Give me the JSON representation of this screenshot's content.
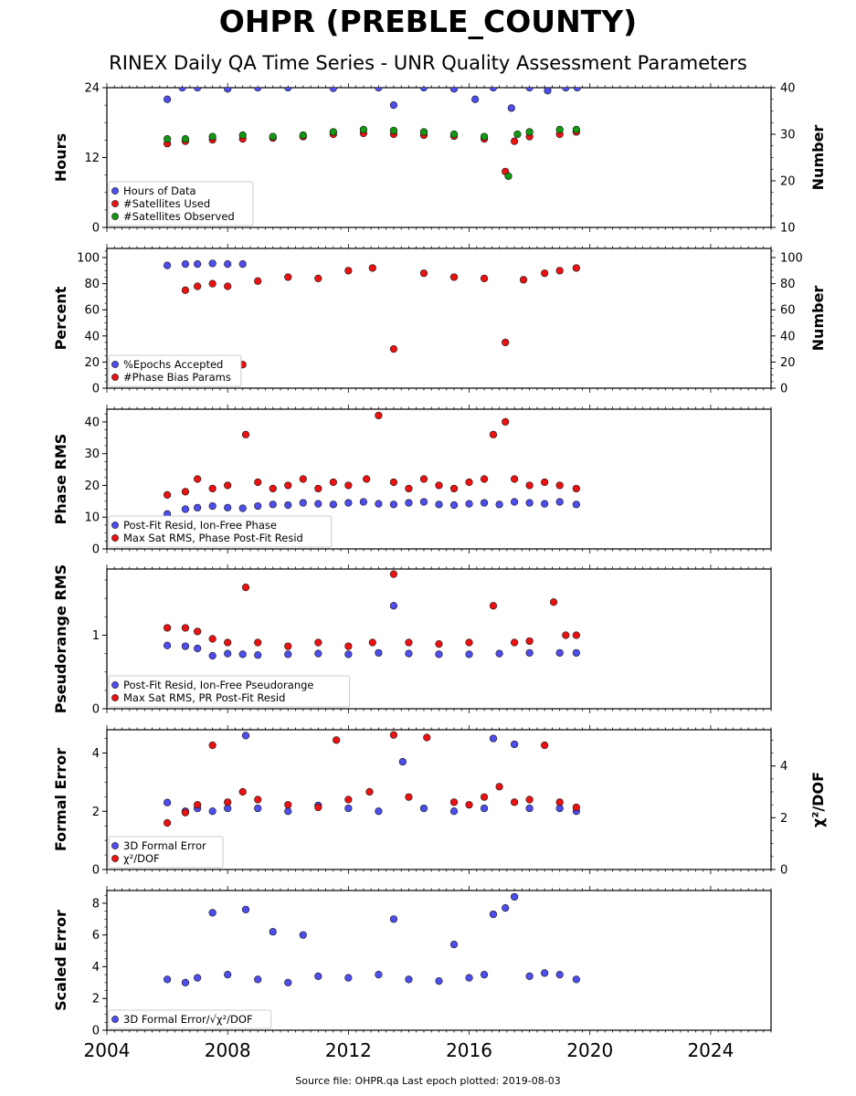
{
  "page": {
    "title": "OHPR (PREBLE_COUNTY)",
    "subtitle": "RINEX Daily QA Time Series - UNR Quality Assessment Parameters",
    "footer": "Source file: OHPR.qa Last epoch plotted: 2019-08-03"
  },
  "colors": {
    "blue": "#4e4ef0",
    "red": "#ee1111",
    "green": "#119911",
    "edge": "#111111"
  },
  "x_axis": {
    "range": [
      2004,
      2026
    ],
    "ticks": [
      2004,
      2008,
      2012,
      2016,
      2020,
      2024
    ]
  },
  "chart_data": [
    {
      "type": "scatter",
      "ylabel": "Hours",
      "ylim": [
        0,
        24
      ],
      "yticks": [
        0,
        12,
        24
      ],
      "ylabel_right": "Number",
      "ylim_right": [
        10,
        40
      ],
      "yticks_right": [
        10,
        20,
        30,
        40
      ],
      "legend_placement": "lower-left",
      "series": [
        {
          "name": "Hours of Data",
          "color": "blue",
          "axis": "left",
          "x": [
            2006.0,
            2006.5,
            2007.0,
            2008.0,
            2009.0,
            2010.0,
            2011.5,
            2013.0,
            2013.5,
            2014.5,
            2015.5,
            2016.2,
            2016.8,
            2017.4,
            2018.0,
            2018.6,
            2019.2,
            2019.58
          ],
          "y": [
            22.0,
            24.0,
            24.0,
            23.8,
            24.0,
            24.0,
            23.9,
            24.0,
            21.0,
            24.0,
            23.8,
            22.0,
            24.0,
            20.5,
            24.0,
            23.5,
            24.0,
            24.0
          ]
        },
        {
          "name": "#Satellites Used",
          "color": "red",
          "axis": "right",
          "x": [
            2006.0,
            2006.6,
            2007.5,
            2008.5,
            2009.5,
            2010.5,
            2011.5,
            2012.5,
            2013.5,
            2014.5,
            2015.5,
            2016.5,
            2017.2,
            2017.5,
            2018.0,
            2019.0,
            2019.55
          ],
          "y": [
            28.0,
            28.5,
            28.8,
            29.0,
            29.2,
            29.5,
            30.0,
            30.2,
            30.0,
            29.8,
            29.6,
            29.0,
            22.0,
            28.5,
            29.5,
            30.0,
            30.5
          ]
        },
        {
          "name": "#Satellites Observed",
          "color": "green",
          "axis": "right",
          "x": [
            2006.0,
            2006.6,
            2007.5,
            2008.5,
            2009.5,
            2010.5,
            2011.5,
            2012.5,
            2013.5,
            2014.5,
            2015.5,
            2016.5,
            2017.3,
            2017.6,
            2018.0,
            2019.0,
            2019.55
          ],
          "y": [
            29.0,
            29.0,
            29.5,
            29.8,
            29.5,
            29.8,
            30.5,
            31.0,
            30.8,
            30.5,
            30.0,
            29.5,
            21.0,
            30.0,
            30.5,
            31.0,
            31.0
          ]
        }
      ]
    },
    {
      "type": "scatter",
      "ylabel": "Percent",
      "ylim": [
        0,
        107
      ],
      "yticks": [
        0,
        20,
        40,
        60,
        80,
        100
      ],
      "ylabel_right": "Number",
      "ylim_right": [
        0,
        107
      ],
      "yticks_right": [
        0,
        20,
        40,
        60,
        80,
        100
      ],
      "legend_placement": "lower-left",
      "series": [
        {
          "name": "%Epochs Accepted",
          "color": "blue",
          "axis": "left",
          "x": [
            2006.0,
            2006.6,
            2007.0,
            2007.5,
            2008.0,
            2008.5
          ],
          "y": [
            94.0,
            95.0,
            95.0,
            95.5,
            95.0,
            95.0
          ]
        },
        {
          "name": "#Phase Bias Params",
          "color": "red",
          "axis": "right",
          "x": [
            2006.6,
            2007.0,
            2007.5,
            2008.0,
            2008.5,
            2009.0,
            2010.0,
            2011.0,
            2012.0,
            2012.8,
            2013.5,
            2014.5,
            2015.5,
            2016.5,
            2017.2,
            2017.8,
            2018.5,
            2019.0,
            2019.55
          ],
          "y": [
            75.0,
            78.0,
            80.0,
            78.0,
            18.0,
            82.0,
            85.0,
            84.0,
            90.0,
            92.0,
            30.0,
            88.0,
            85.0,
            84.0,
            35.0,
            83.0,
            88.0,
            90.0,
            92.0
          ]
        }
      ]
    },
    {
      "type": "scatter",
      "ylabel": "Phase RMS",
      "ylim": [
        0,
        44
      ],
      "yticks": [
        0,
        10,
        20,
        30,
        40
      ],
      "legend_placement": "lower-left",
      "series": [
        {
          "name": "Post-Fit Resid, Ion-Free Phase",
          "color": "blue",
          "x": [
            2006.0,
            2006.6,
            2007.0,
            2007.5,
            2008.0,
            2008.5,
            2009.0,
            2009.5,
            2010.0,
            2010.5,
            2011.0,
            2011.5,
            2012.0,
            2012.5,
            2013.0,
            2013.5,
            2014.0,
            2014.5,
            2015.0,
            2015.5,
            2016.0,
            2016.5,
            2017.0,
            2017.5,
            2018.0,
            2018.5,
            2019.0,
            2019.55
          ],
          "y": [
            11.0,
            12.5,
            13.0,
            13.5,
            13.0,
            12.8,
            13.5,
            14.0,
            13.8,
            14.5,
            14.2,
            14.0,
            14.5,
            14.8,
            14.2,
            14.0,
            14.5,
            14.8,
            14.0,
            13.8,
            14.2,
            14.5,
            14.0,
            14.8,
            14.5,
            14.2,
            14.8,
            14.0
          ]
        },
        {
          "name": "Max Sat RMS, Phase Post-Fit Resid",
          "color": "red",
          "x": [
            2006.0,
            2006.6,
            2007.0,
            2007.5,
            2008.0,
            2008.6,
            2009.0,
            2009.5,
            2010.0,
            2010.5,
            2011.0,
            2011.5,
            2012.0,
            2012.6,
            2013.0,
            2013.5,
            2014.0,
            2014.5,
            2015.0,
            2015.5,
            2016.0,
            2016.5,
            2016.8,
            2017.2,
            2017.5,
            2018.0,
            2018.5,
            2019.0,
            2019.55
          ],
          "y": [
            17.0,
            18.0,
            22.0,
            19.0,
            20.0,
            36.0,
            21.0,
            19.0,
            20.0,
            22.0,
            19.0,
            21.0,
            20.0,
            22.0,
            42.0,
            21.0,
            19.0,
            22.0,
            20.0,
            19.0,
            21.0,
            22.0,
            36.0,
            40.0,
            22.0,
            20.0,
            21.0,
            20.0,
            19.0
          ]
        }
      ]
    },
    {
      "type": "scatter",
      "ylabel": "Pseudorange RMS",
      "ylim": [
        0,
        1.9
      ],
      "yticks": [
        0,
        1
      ],
      "legend_placement": "lower-left",
      "series": [
        {
          "name": "Post-Fit Resid, Ion-Free Pseudorange",
          "color": "blue",
          "x": [
            2006.0,
            2006.6,
            2007.0,
            2007.5,
            2008.0,
            2008.5,
            2009.0,
            2010.0,
            2011.0,
            2012.0,
            2013.0,
            2013.5,
            2014.0,
            2015.0,
            2016.0,
            2017.0,
            2018.0,
            2019.0,
            2019.55
          ],
          "y": [
            0.86,
            0.85,
            0.82,
            0.72,
            0.75,
            0.74,
            0.73,
            0.74,
            0.75,
            0.74,
            0.76,
            1.4,
            0.75,
            0.74,
            0.74,
            0.75,
            0.76,
            0.76,
            0.76
          ]
        },
        {
          "name": "Max Sat RMS, PR Post-Fit Resid",
          "color": "red",
          "x": [
            2006.0,
            2006.6,
            2007.0,
            2007.5,
            2008.0,
            2008.6,
            2009.0,
            2010.0,
            2011.0,
            2012.0,
            2012.8,
            2013.5,
            2014.0,
            2015.0,
            2016.0,
            2016.8,
            2017.5,
            2018.0,
            2018.8,
            2019.2,
            2019.55
          ],
          "y": [
            1.1,
            1.1,
            1.05,
            0.95,
            0.9,
            1.65,
            0.9,
            0.85,
            0.9,
            0.85,
            0.9,
            1.83,
            0.9,
            0.88,
            0.9,
            1.4,
            0.9,
            0.92,
            1.45,
            1.0,
            1.0
          ]
        }
      ]
    },
    {
      "type": "scatter",
      "ylabel": "Formal Error",
      "ylim": [
        0,
        4.8
      ],
      "yticks": [
        0,
        2,
        4
      ],
      "ylabel_right": "χ²/DOF",
      "ylim_right": [
        0,
        5.4
      ],
      "yticks_right": [
        0,
        2,
        4
      ],
      "legend_placement": "lower-left",
      "series": [
        {
          "name": "3D Formal Error",
          "color": "blue",
          "axis": "left",
          "x": [
            2006.0,
            2006.6,
            2007.0,
            2007.5,
            2008.0,
            2008.6,
            2009.0,
            2010.0,
            2011.0,
            2012.0,
            2013.0,
            2013.8,
            2014.5,
            2015.5,
            2016.5,
            2016.8,
            2017.5,
            2018.0,
            2019.0,
            2019.55
          ],
          "y": [
            2.3,
            2.0,
            2.1,
            2.0,
            2.1,
            4.6,
            2.1,
            2.0,
            2.2,
            2.1,
            2.0,
            3.7,
            2.1,
            2.0,
            2.1,
            4.5,
            4.3,
            2.1,
            2.1,
            2.0
          ]
        },
        {
          "name": "χ²/DOF",
          "color": "red",
          "axis": "right",
          "x": [
            2006.0,
            2006.6,
            2007.0,
            2007.5,
            2008.0,
            2008.5,
            2009.0,
            2010.0,
            2011.0,
            2011.6,
            2012.0,
            2012.7,
            2013.5,
            2014.0,
            2014.6,
            2015.5,
            2016.0,
            2016.5,
            2017.0,
            2017.5,
            2018.0,
            2018.5,
            2019.0,
            2019.55
          ],
          "y": [
            1.8,
            2.2,
            2.5,
            4.8,
            2.6,
            3.0,
            2.7,
            2.5,
            2.4,
            5.0,
            2.7,
            3.0,
            5.2,
            2.8,
            5.1,
            2.6,
            2.5,
            2.8,
            3.2,
            2.6,
            2.7,
            4.8,
            2.6,
            2.4
          ]
        }
      ]
    },
    {
      "type": "scatter",
      "ylabel": "Scaled Error",
      "ylim": [
        0,
        8.8
      ],
      "yticks": [
        0,
        2,
        4,
        6,
        8
      ],
      "legend_placement": "lower-left",
      "series": [
        {
          "name": "3D Formal Error/√χ²/DOF",
          "color": "blue",
          "x": [
            2006.0,
            2006.6,
            2007.0,
            2007.5,
            2008.0,
            2008.6,
            2009.0,
            2009.5,
            2010.0,
            2010.5,
            2011.0,
            2012.0,
            2013.0,
            2013.5,
            2014.0,
            2015.0,
            2015.5,
            2016.0,
            2016.5,
            2016.8,
            2017.2,
            2017.5,
            2018.0,
            2018.5,
            2019.0,
            2019.55
          ],
          "y": [
            3.2,
            3.0,
            3.3,
            7.4,
            3.5,
            7.6,
            3.2,
            6.2,
            3.0,
            6.0,
            3.4,
            3.3,
            3.5,
            7.0,
            3.2,
            3.1,
            5.4,
            3.3,
            3.5,
            7.3,
            7.7,
            8.4,
            3.4,
            3.6,
            3.5,
            3.2
          ]
        }
      ]
    }
  ]
}
